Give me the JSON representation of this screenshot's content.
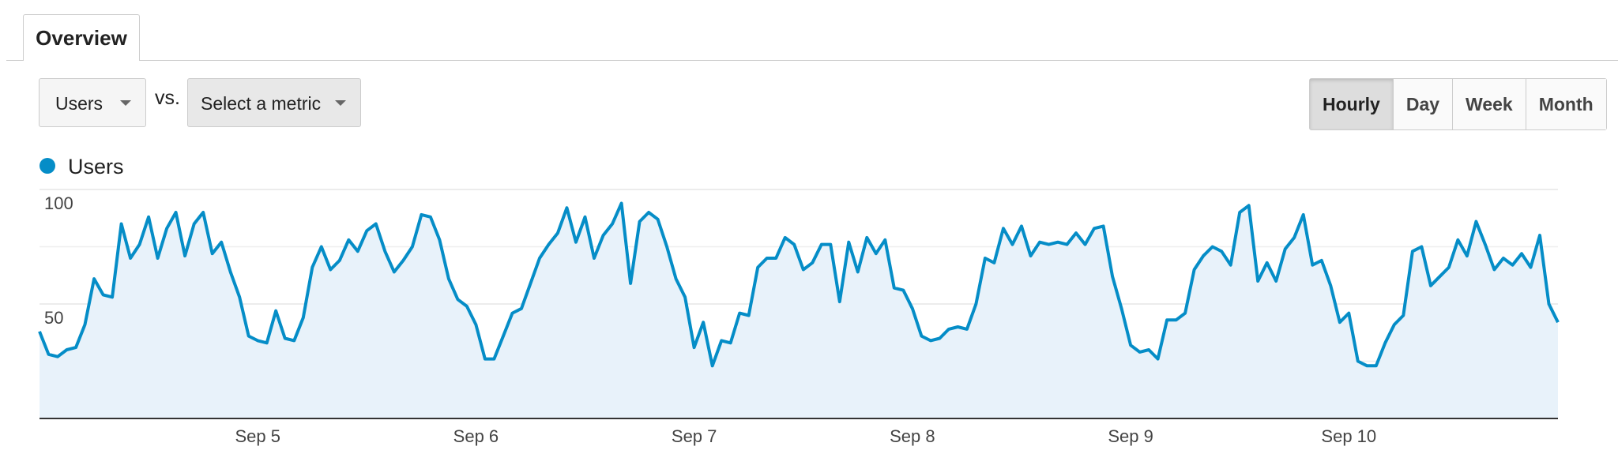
{
  "ui": {
    "tab": "Overview",
    "metric": "Users",
    "vs": "vs.",
    "compare": "Select a metric",
    "periods": [
      "Hourly",
      "Day",
      "Week",
      "Month"
    ],
    "active_period": "Hourly"
  },
  "chart_data": {
    "type": "area",
    "categories": [
      null,
      null,
      null,
      null,
      null,
      null,
      null,
      null,
      null,
      null,
      null,
      null,
      null,
      null,
      null,
      null,
      null,
      null,
      null,
      null,
      null,
      null,
      null,
      null,
      "Sep 5",
      null,
      null,
      null,
      null,
      null,
      null,
      null,
      null,
      null,
      null,
      null,
      null,
      null,
      null,
      null,
      null,
      null,
      null,
      null,
      null,
      null,
      null,
      null,
      "Sep 6",
      null,
      null,
      null,
      null,
      null,
      null,
      null,
      null,
      null,
      null,
      null,
      null,
      null,
      null,
      null,
      null,
      null,
      null,
      null,
      null,
      null,
      null,
      null,
      "Sep 7",
      null,
      null,
      null,
      null,
      null,
      null,
      null,
      null,
      null,
      null,
      null,
      null,
      null,
      null,
      null,
      null,
      null,
      null,
      null,
      null,
      null,
      null,
      null,
      "Sep 8",
      null,
      null,
      null,
      null,
      null,
      null,
      null,
      null,
      null,
      null,
      null,
      null,
      null,
      null,
      null,
      null,
      null,
      null,
      null,
      null,
      null,
      null,
      null,
      "Sep 9",
      null,
      null,
      null,
      null,
      null,
      null,
      null,
      null,
      null,
      null,
      null,
      null,
      null,
      null,
      null,
      null,
      null,
      null,
      null,
      null,
      null,
      null,
      null,
      "Sep 10",
      null,
      null,
      null,
      null,
      null,
      null,
      null,
      null,
      null,
      null,
      null,
      null,
      null,
      null,
      null,
      null,
      null,
      null,
      null,
      null,
      null,
      null,
      null
    ],
    "series": [
      {
        "name": "Users",
        "color": "#058dc7",
        "fill": "#e8f2fa",
        "values": [
          38,
          28,
          27,
          30,
          31,
          41,
          61,
          54,
          53,
          85,
          70,
          76,
          88,
          70,
          83,
          90,
          71,
          85,
          90,
          72,
          77,
          64,
          53,
          36,
          34,
          33,
          47,
          35,
          34,
          44,
          66,
          75,
          65,
          69,
          78,
          73,
          82,
          85,
          73,
          64,
          69,
          75,
          89,
          88,
          78,
          61,
          52,
          49,
          41,
          26,
          26,
          36,
          46,
          48,
          59,
          70,
          76,
          81,
          92,
          77,
          88,
          70,
          80,
          85,
          94,
          59,
          86,
          90,
          87,
          75,
          61,
          53,
          31,
          42,
          23,
          34,
          33,
          46,
          45,
          66,
          70,
          70,
          79,
          76,
          65,
          68,
          76,
          76,
          51,
          77,
          64,
          79,
          72,
          78,
          57,
          56,
          48,
          36,
          34,
          35,
          39,
          40,
          39,
          50,
          70,
          68,
          83,
          76,
          84,
          71,
          77,
          76,
          77,
          76,
          81,
          76,
          83,
          84,
          62,
          48,
          32,
          29,
          30,
          26,
          43,
          43,
          46,
          65,
          71,
          75,
          73,
          67,
          90,
          93,
          60,
          68,
          60,
          74,
          79,
          89,
          67,
          69,
          58,
          42,
          46,
          25,
          23,
          23,
          33,
          41,
          45,
          73,
          75,
          58,
          62,
          66,
          78,
          71,
          86,
          76,
          65,
          70,
          67,
          72,
          66,
          80,
          50,
          42
        ]
      }
    ],
    "ylim": [
      0,
      100
    ],
    "yticks": [
      50,
      100
    ],
    "minor_yticks": [
      25,
      75
    ],
    "grid": true
  }
}
